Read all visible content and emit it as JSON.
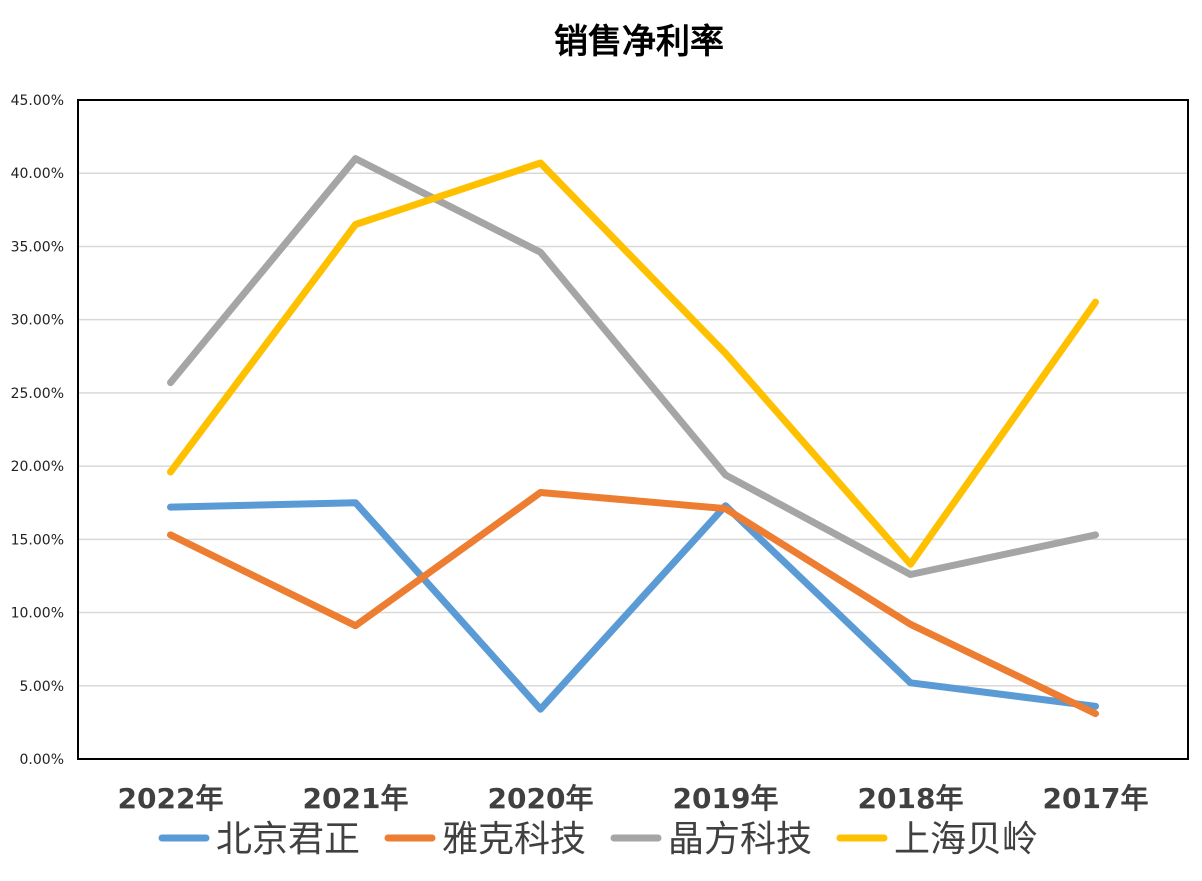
{
  "chart_data": {
    "type": "line",
    "title": "销售净利率",
    "xlabel": "",
    "ylabel": "",
    "categories": [
      "2022年",
      "2021年",
      "2020年",
      "2019年",
      "2018年",
      "2017年"
    ],
    "ylim": [
      0,
      45
    ],
    "yticks": [
      0,
      5,
      10,
      15,
      20,
      25,
      30,
      35,
      40,
      45
    ],
    "ytick_labels": [
      "0.00%",
      "5.00%",
      "10.00%",
      "15.00%",
      "20.00%",
      "25.00%",
      "30.00%",
      "35.00%",
      "40.00%",
      "45.00%"
    ],
    "grid": true,
    "legend_position": "bottom",
    "series": [
      {
        "name": "北京君正",
        "color": "#5B9BD5",
        "values": [
          17.2,
          17.5,
          3.4,
          17.3,
          5.2,
          3.6
        ]
      },
      {
        "name": "雅克科技",
        "color": "#ED7D31",
        "values": [
          15.3,
          9.1,
          18.2,
          17.1,
          9.2,
          3.1
        ]
      },
      {
        "name": "晶方科技",
        "color": "#A5A5A5",
        "values": [
          25.7,
          41.0,
          34.6,
          19.4,
          12.6,
          15.3
        ]
      },
      {
        "name": "上海贝岭",
        "color": "#FFC000",
        "values": [
          19.6,
          36.5,
          40.7,
          27.7,
          13.3,
          31.2
        ]
      }
    ]
  }
}
